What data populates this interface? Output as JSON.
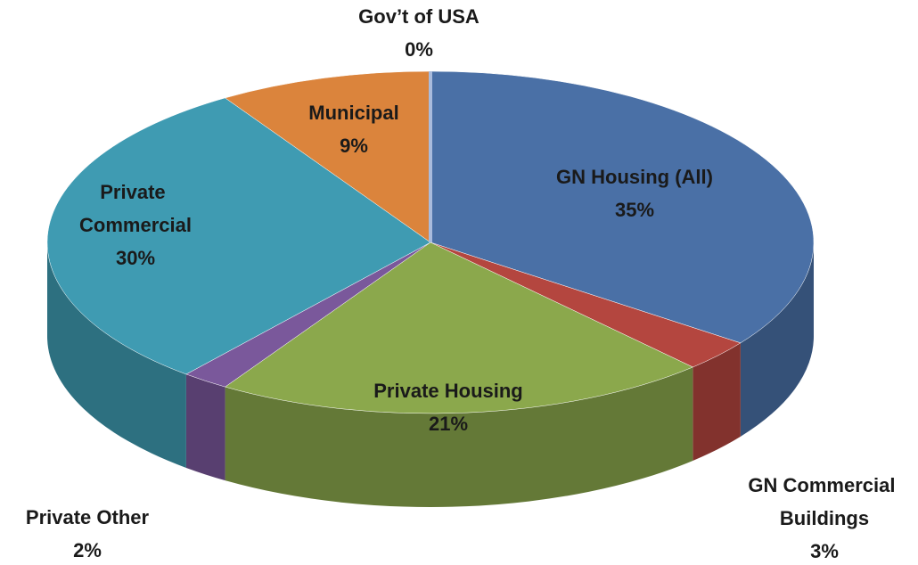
{
  "chart_data": {
    "type": "pie3d",
    "categories": [
      "GN Housing (All)",
      "GN Commercial Buildings",
      "Private Housing",
      "Private Other",
      "Private Commercial",
      "Municipal",
      "Gov’t of USA"
    ],
    "values": [
      35,
      3,
      21,
      2,
      30,
      9,
      0
    ],
    "value_labels": [
      "35%",
      "3%",
      "21%",
      "2%",
      "30%",
      "9%",
      "0%"
    ],
    "colors": [
      "#4a70a6",
      "#b4463f",
      "#8ba84c",
      "#7a589b",
      "#3f9bb2",
      "#db843c",
      "#a9bbdc"
    ]
  }
}
